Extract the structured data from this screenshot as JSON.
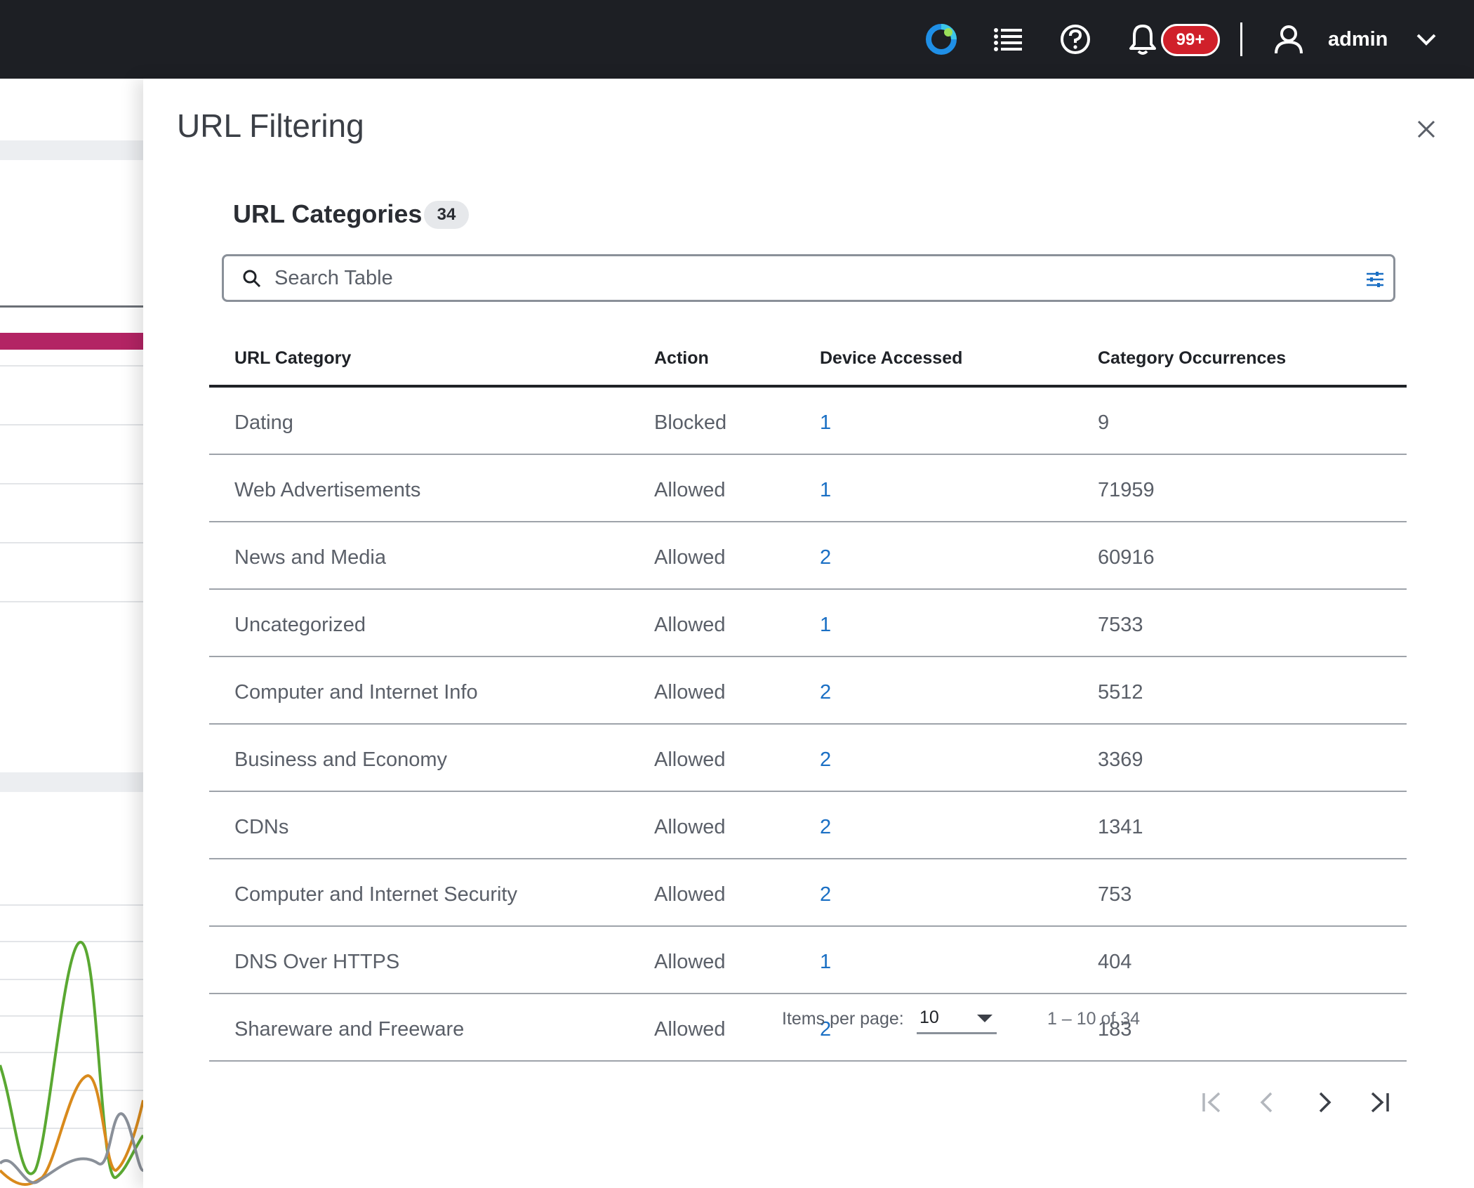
{
  "topbar": {
    "notification_count": "99+",
    "username": "admin"
  },
  "drawer": {
    "title": "URL Filtering",
    "section": {
      "title": "URL Categories",
      "count": "34"
    },
    "search": {
      "placeholder": "Search Table"
    },
    "table": {
      "columns": [
        "URL Category",
        "Action",
        "Device Accessed",
        "Category Occurrences"
      ],
      "rows": [
        {
          "category": "Dating",
          "action": "Blocked",
          "devices": "1",
          "occurrences": "9"
        },
        {
          "category": "Web Advertisements",
          "action": "Allowed",
          "devices": "1",
          "occurrences": "71959"
        },
        {
          "category": "News and Media",
          "action": "Allowed",
          "devices": "2",
          "occurrences": "60916"
        },
        {
          "category": "Uncategorized",
          "action": "Allowed",
          "devices": "1",
          "occurrences": "7533"
        },
        {
          "category": "Computer and Internet Info",
          "action": "Allowed",
          "devices": "2",
          "occurrences": "5512"
        },
        {
          "category": "Business and Economy",
          "action": "Allowed",
          "devices": "2",
          "occurrences": "3369"
        },
        {
          "category": "CDNs",
          "action": "Allowed",
          "devices": "2",
          "occurrences": "1341"
        },
        {
          "category": "Computer and Internet Security",
          "action": "Allowed",
          "devices": "2",
          "occurrences": "753"
        },
        {
          "category": "DNS Over HTTPS",
          "action": "Allowed",
          "devices": "1",
          "occurrences": "404"
        },
        {
          "category": "Shareware and Freeware",
          "action": "Allowed",
          "devices": "2",
          "occurrences": "183"
        }
      ]
    },
    "pagination": {
      "items_per_page_label": "Items per page:",
      "items_per_page_value": "10",
      "range": "1 – 10 of 34"
    }
  },
  "colors": {
    "topbar": "#1d1f24",
    "badge": "#d0202a",
    "link": "#1a6fc4",
    "accent_bar": "#b32464"
  },
  "icons": [
    "logo-icon",
    "task-list-icon",
    "help-icon",
    "bell-icon",
    "user-icon",
    "chevron-down-icon",
    "close-icon",
    "search-icon",
    "filter-settings-icon",
    "first-page-icon",
    "prev-page-icon",
    "next-page-icon",
    "last-page-icon"
  ]
}
